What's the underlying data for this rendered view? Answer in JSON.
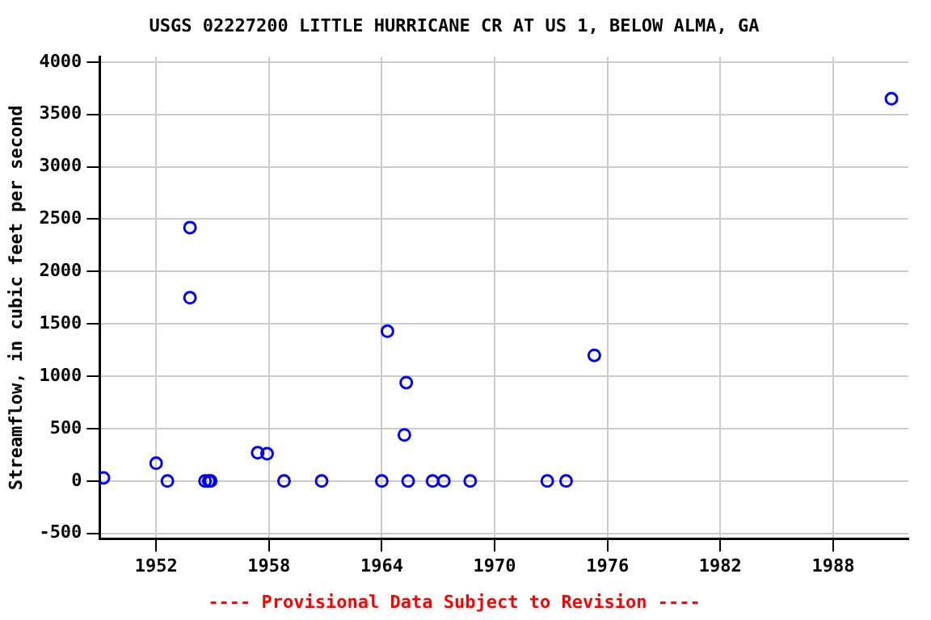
{
  "chart_data": {
    "type": "scatter",
    "title": "USGS 02227200 LITTLE HURRICANE CR AT US 1, BELOW ALMA, GA",
    "ylabel": "Streamflow, in cubic feet per second",
    "x": [
      1949.2,
      1952.0,
      1952.6,
      1953.8,
      1953.8,
      1954.6,
      1954.8,
      1954.9,
      1957.4,
      1957.9,
      1958.8,
      1960.8,
      1964.0,
      1964.3,
      1965.3,
      1965.2,
      1965.4,
      1966.7,
      1967.3,
      1968.7,
      1972.8,
      1973.8,
      1975.3,
      1991.1
    ],
    "series": [
      {
        "color": "#0000ff",
        "values": [
          30,
          170,
          0,
          2420,
          1750,
          0,
          0,
          0,
          270,
          260,
          0,
          0,
          0,
          1430,
          940,
          440,
          0,
          0,
          0,
          0,
          0,
          0,
          1200,
          3650
        ]
      }
    ],
    "xlim": [
      1949,
      1992
    ],
    "xticks": [
      1952,
      1958,
      1964,
      1970,
      1976,
      1982,
      1988
    ],
    "ylim": [
      -550,
      4050
    ],
    "yticks": [
      -500,
      0,
      500,
      1000,
      1500,
      2000,
      2500,
      3000,
      3500,
      4000
    ],
    "grid": true,
    "legend": false,
    "marker": "circle",
    "annotations": [
      "---- Provisional Data Subject to Revision ----"
    ]
  }
}
